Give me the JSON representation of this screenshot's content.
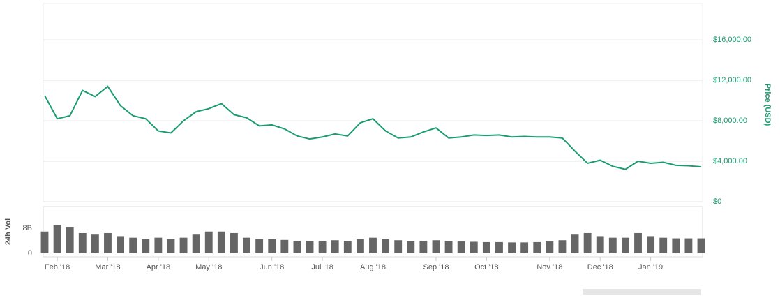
{
  "chart_data": [
    {
      "type": "line",
      "y_label": "Price (USD)",
      "color": "#1a9c6e",
      "categories": [
        null,
        "Feb '18",
        null,
        null,
        null,
        "Mar '18",
        null,
        null,
        null,
        "Apr '18",
        null,
        null,
        null,
        "May '18",
        null,
        null,
        null,
        null,
        "Jun '18",
        null,
        null,
        null,
        "Jul '18",
        null,
        null,
        null,
        "Aug '18",
        null,
        null,
        null,
        null,
        "Sep '18",
        null,
        null,
        null,
        "Oct '18",
        null,
        null,
        null,
        null,
        "Nov '18",
        null,
        null,
        null,
        "Dec '18",
        null,
        null,
        null,
        "Jan '19",
        null,
        null,
        null,
        null
      ],
      "values": [
        10500,
        8200,
        8500,
        11000,
        10400,
        11400,
        9500,
        8500,
        8200,
        7000,
        6800,
        8000,
        8900,
        9200,
        9700,
        8600,
        8300,
        7500,
        7600,
        7200,
        6500,
        6200,
        6400,
        6700,
        6500,
        7800,
        8200,
        7000,
        6300,
        6400,
        6900,
        7300,
        6300,
        6400,
        6600,
        6550,
        6600,
        6400,
        6450,
        6400,
        6400,
        6300,
        5000,
        3800,
        4100,
        3500,
        3200,
        4000,
        3800,
        3900,
        3600,
        3550,
        3450
      ],
      "ylim": [
        0,
        19600
      ],
      "yticks": [
        {
          "value": 0,
          "label": "$0"
        },
        {
          "value": 4000,
          "label": "$4,000.00"
        },
        {
          "value": 8000,
          "label": "$8,000.00"
        },
        {
          "value": 12000,
          "label": "$12,000.00"
        },
        {
          "value": 16000,
          "label": "$16,000.00"
        }
      ],
      "grid": true
    },
    {
      "type": "bar",
      "y_label": "24h Vol",
      "color": "#666666",
      "values": [
        7000000000,
        9000000000,
        8500000000,
        6500000000,
        6000000000,
        6500000000,
        5500000000,
        5000000000,
        4500000000,
        5000000000,
        4500000000,
        5000000000,
        6000000000,
        7000000000,
        7000000000,
        6500000000,
        5000000000,
        4500000000,
        4500000000,
        4300000000,
        4000000000,
        4000000000,
        4000000000,
        4200000000,
        4000000000,
        4500000000,
        5000000000,
        4500000000,
        4200000000,
        4000000000,
        4000000000,
        4200000000,
        4000000000,
        3800000000,
        3700000000,
        3600000000,
        3600000000,
        3500000000,
        3500000000,
        3600000000,
        3800000000,
        4200000000,
        6000000000,
        6500000000,
        5500000000,
        5000000000,
        5000000000,
        6500000000,
        5500000000,
        5000000000,
        4800000000,
        4800000000,
        4800000000
      ],
      "ylim": [
        0,
        15000000000
      ],
      "yticks": [
        0,
        {
          "value": 8000000000,
          "label": "8B"
        }
      ]
    }
  ]
}
